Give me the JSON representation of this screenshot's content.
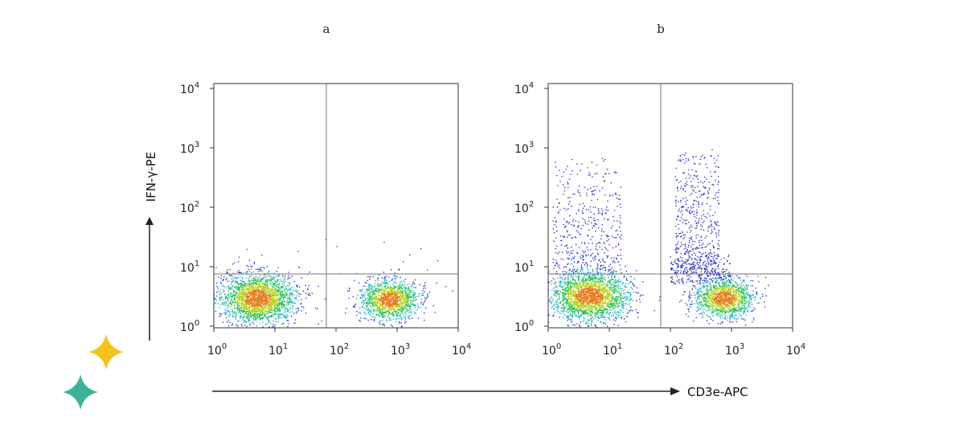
{
  "panels": [
    {
      "label": "a",
      "x_ticks": [
        {
          "base": "10",
          "exp": "0"
        },
        {
          "base": "10",
          "exp": "1"
        },
        {
          "base": "10",
          "exp": "2"
        },
        {
          "base": "10",
          "exp": "3"
        },
        {
          "base": "10",
          "exp": "4"
        }
      ],
      "y_ticks": [
        {
          "base": "10",
          "exp": "0"
        },
        {
          "base": "10",
          "exp": "1"
        },
        {
          "base": "10",
          "exp": "2"
        },
        {
          "base": "10",
          "exp": "3"
        },
        {
          "base": "10",
          "exp": "4"
        }
      ]
    },
    {
      "label": "b",
      "x_ticks": [
        {
          "base": "10",
          "exp": "0"
        },
        {
          "base": "10",
          "exp": "1"
        },
        {
          "base": "10",
          "exp": "2"
        },
        {
          "base": "10",
          "exp": "3"
        },
        {
          "base": "10",
          "exp": "4"
        }
      ],
      "y_ticks": [
        {
          "base": "10",
          "exp": "0"
        },
        {
          "base": "10",
          "exp": "1"
        },
        {
          "base": "10",
          "exp": "2"
        },
        {
          "base": "10",
          "exp": "3"
        },
        {
          "base": "10",
          "exp": "4"
        }
      ]
    }
  ],
  "y_axis_label": "IFN-γ-PE",
  "x_axis_label": "CD3e-APC"
}
